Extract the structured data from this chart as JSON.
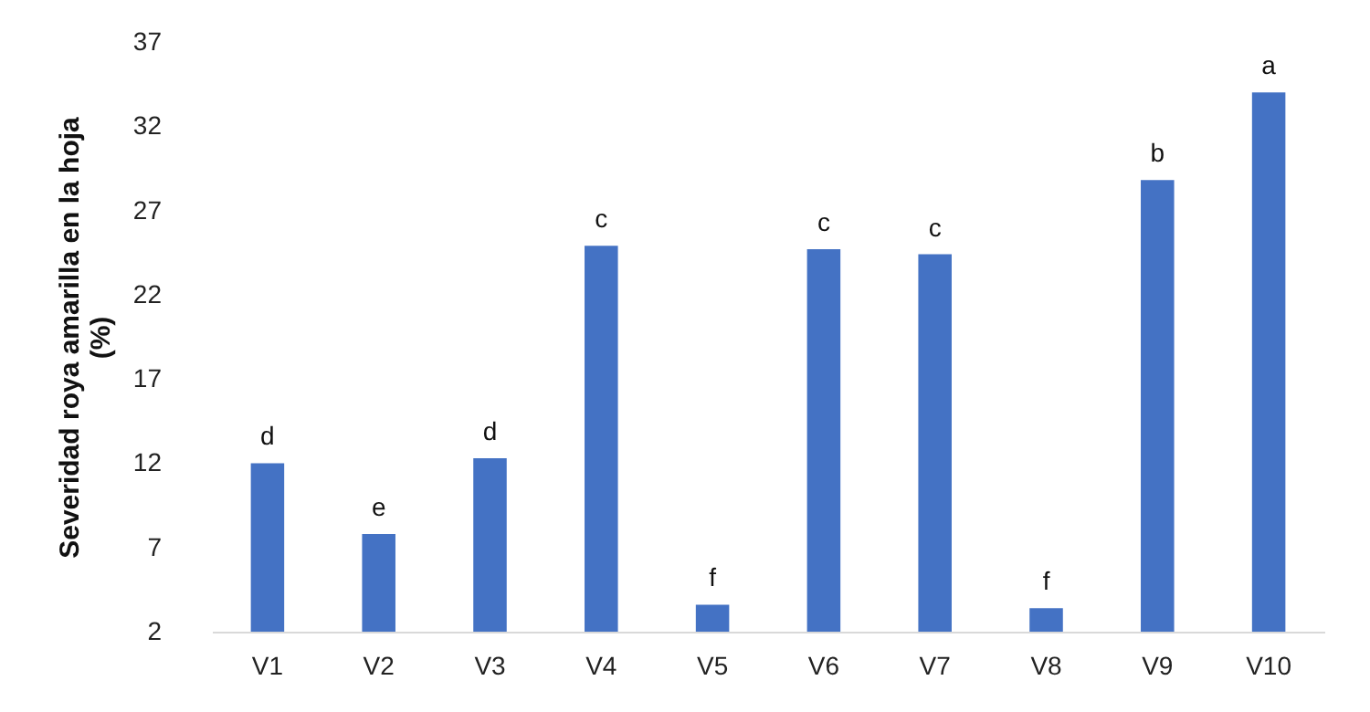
{
  "chart_data": {
    "type": "bar",
    "ylabel": "Severidad roya  amarilla en la hoja (%)",
    "categories": [
      "V1",
      "V2",
      "V3",
      "V4",
      "V5",
      "V6",
      "V7",
      "V8",
      "V9",
      "V10"
    ],
    "values": [
      12.0,
      7.8,
      12.3,
      24.9,
      3.6,
      24.7,
      24.4,
      3.4,
      28.8,
      34.0
    ],
    "color": "#4472c4",
    "ylim": [
      2,
      37
    ],
    "yticks": [
      2,
      7,
      12,
      17,
      22,
      27,
      32,
      37
    ],
    "grid": false,
    "annotations": [
      {
        "text": "d",
        "x": "V1",
        "y": 12.0
      },
      {
        "text": "e",
        "x": "V2",
        "y": 7.8
      },
      {
        "text": "d",
        "x": "V3",
        "y": 12.3
      },
      {
        "text": "c",
        "x": "V4",
        "y": 24.9
      },
      {
        "text": "f",
        "x": "V5",
        "y": 3.6
      },
      {
        "text": "c",
        "x": "V6",
        "y": 24.7
      },
      {
        "text": "c",
        "x": "V7",
        "y": 24.4
      },
      {
        "text": "f",
        "x": "V8",
        "y": 3.4
      },
      {
        "text": "b",
        "x": "V9",
        "y": 28.8
      },
      {
        "text": "a",
        "x": "V10",
        "y": 34.0
      }
    ]
  }
}
